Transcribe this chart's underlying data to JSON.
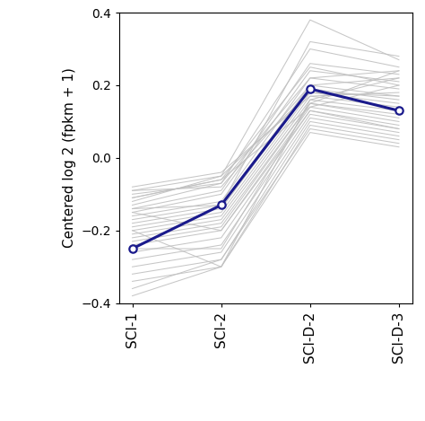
{
  "x_labels": [
    "SCI-1",
    "SCI-2",
    "SCI-D-2",
    "SCI-D-3"
  ],
  "mean_values": [
    -0.25,
    -0.13,
    0.19,
    0.13
  ],
  "gray_lines": [
    [
      -0.09,
      -0.08,
      0.2,
      0.22
    ],
    [
      -0.1,
      -0.07,
      0.22,
      0.24
    ],
    [
      -0.11,
      -0.06,
      0.25,
      0.2
    ],
    [
      -0.12,
      -0.05,
      0.38,
      0.27
    ],
    [
      -0.13,
      -0.07,
      0.3,
      0.25
    ],
    [
      -0.14,
      -0.09,
      0.26,
      0.23
    ],
    [
      -0.15,
      -0.1,
      0.24,
      0.21
    ],
    [
      -0.16,
      -0.12,
      0.22,
      0.19
    ],
    [
      -0.17,
      -0.13,
      0.2,
      0.17
    ],
    [
      -0.18,
      -0.14,
      0.19,
      0.16
    ],
    [
      -0.19,
      -0.15,
      0.18,
      0.15
    ],
    [
      -0.2,
      -0.16,
      0.17,
      0.14
    ],
    [
      -0.21,
      -0.17,
      0.16,
      0.13
    ],
    [
      -0.22,
      -0.18,
      0.15,
      0.12
    ],
    [
      -0.23,
      -0.19,
      0.15,
      0.11
    ],
    [
      -0.24,
      -0.2,
      0.14,
      0.1
    ],
    [
      -0.26,
      -0.22,
      0.13,
      0.09
    ],
    [
      -0.28,
      -0.24,
      0.12,
      0.08
    ],
    [
      -0.3,
      -0.26,
      0.11,
      0.07
    ],
    [
      -0.32,
      -0.28,
      0.1,
      0.06
    ],
    [
      -0.34,
      -0.3,
      0.09,
      0.05
    ],
    [
      -0.36,
      -0.28,
      0.08,
      0.04
    ],
    [
      -0.38,
      -0.3,
      0.07,
      0.03
    ],
    [
      -0.08,
      -0.04,
      0.17,
      0.18
    ],
    [
      -0.09,
      -0.05,
      0.18,
      0.17
    ],
    [
      -0.11,
      -0.06,
      0.14,
      0.2
    ],
    [
      -0.14,
      -0.13,
      0.32,
      0.28
    ],
    [
      -0.2,
      -0.3,
      0.16,
      0.22
    ],
    [
      -0.15,
      -0.2,
      0.13,
      0.08
    ],
    [
      -0.25,
      -0.25,
      0.15,
      0.24
    ]
  ],
  "mean_color": "#1a1a8c",
  "gray_color": "#c0c0c0",
  "ylim": [
    -0.4,
    0.4
  ],
  "yticks": [
    -0.4,
    -0.2,
    0.0,
    0.2,
    0.4
  ],
  "ylabel": "Centered log 2 (fpkm + 1)",
  "background_color": "#ffffff",
  "mean_linewidth": 2.2,
  "gray_linewidth": 0.75,
  "marker": "o",
  "marker_size": 6,
  "marker_facecolor": "white"
}
